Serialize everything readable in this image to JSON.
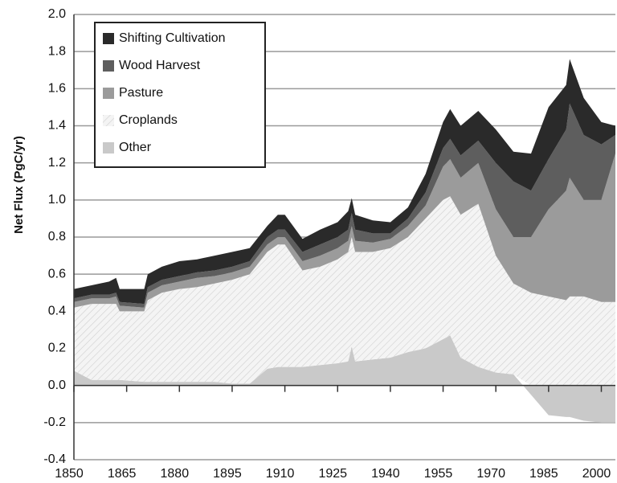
{
  "chart_data": {
    "type": "stacked-area",
    "y_label": "Net Flux  (PgC/yr)",
    "x": [
      1850,
      1855,
      1860,
      1862,
      1863,
      1870,
      1871,
      1875,
      1880,
      1885,
      1890,
      1895,
      1900,
      1905,
      1908,
      1910,
      1915,
      1920,
      1925,
      1928,
      1929,
      1930,
      1935,
      1940,
      1945,
      1950,
      1955,
      1957,
      1960,
      1965,
      1970,
      1975,
      1980,
      1985,
      1990,
      1991,
      1995,
      2000,
      2004
    ],
    "series": [
      {
        "name": "Other",
        "color": "#c9c9c9",
        "values": [
          0.08,
          0.03,
          0.03,
          0.03,
          0.03,
          0.02,
          0.02,
          0.02,
          0.02,
          0.02,
          0.02,
          0.01,
          0.01,
          0.09,
          0.1,
          0.1,
          0.1,
          0.11,
          0.12,
          0.13,
          0.21,
          0.13,
          0.14,
          0.15,
          0.18,
          0.2,
          0.25,
          0.27,
          0.15,
          0.1,
          0.07,
          0.06,
          -0.05,
          -0.16,
          -0.17,
          -0.17,
          -0.19,
          -0.2,
          -0.2
        ]
      },
      {
        "name": "Croplands",
        "color": "#f4f4f4",
        "values": [
          0.34,
          0.41,
          0.41,
          0.41,
          0.37,
          0.38,
          0.44,
          0.48,
          0.5,
          0.51,
          0.53,
          0.56,
          0.59,
          0.63,
          0.66,
          0.66,
          0.52,
          0.53,
          0.56,
          0.59,
          0.59,
          0.59,
          0.58,
          0.59,
          0.62,
          0.7,
          0.75,
          0.75,
          0.77,
          0.88,
          0.63,
          0.49,
          0.5,
          0.48,
          0.46,
          0.48,
          0.48,
          0.45,
          0.45
        ]
      },
      {
        "name": "Pasture",
        "color": "#9b9b9b",
        "values": [
          0.03,
          0.03,
          0.03,
          0.04,
          0.03,
          0.02,
          0.04,
          0.04,
          0.04,
          0.05,
          0.04,
          0.04,
          0.04,
          0.04,
          0.04,
          0.04,
          0.05,
          0.06,
          0.06,
          0.06,
          0.06,
          0.06,
          0.05,
          0.05,
          0.06,
          0.07,
          0.18,
          0.2,
          0.2,
          0.22,
          0.25,
          0.25,
          0.3,
          0.47,
          0.59,
          0.64,
          0.52,
          0.55,
          0.8
        ]
      },
      {
        "name": "Wood Harvest",
        "color": "#5e5e5e",
        "values": [
          0.02,
          0.02,
          0.02,
          0.02,
          0.02,
          0.02,
          0.03,
          0.03,
          0.03,
          0.03,
          0.03,
          0.03,
          0.03,
          0.04,
          0.04,
          0.04,
          0.05,
          0.06,
          0.06,
          0.06,
          0.07,
          0.06,
          0.05,
          0.03,
          0.04,
          0.07,
          0.1,
          0.11,
          0.12,
          0.12,
          0.25,
          0.3,
          0.25,
          0.27,
          0.33,
          0.4,
          0.35,
          0.3,
          0.1
        ]
      },
      {
        "name": "Shifting Cultivation",
        "color": "#2a2a2a",
        "values": [
          0.05,
          0.05,
          0.07,
          0.08,
          0.07,
          0.08,
          0.07,
          0.07,
          0.08,
          0.07,
          0.08,
          0.08,
          0.07,
          0.06,
          0.08,
          0.08,
          0.07,
          0.08,
          0.08,
          0.1,
          0.08,
          0.08,
          0.07,
          0.06,
          0.06,
          0.1,
          0.14,
          0.16,
          0.16,
          0.16,
          0.18,
          0.16,
          0.2,
          0.28,
          0.24,
          0.24,
          0.2,
          0.12,
          0.05
        ]
      }
    ],
    "xlim": [
      1850,
      2004
    ],
    "xticks": [
      1850,
      1865,
      1880,
      1895,
      1910,
      1925,
      1940,
      1955,
      1970,
      1985,
      2000
    ],
    "ylim": [
      -0.4,
      2.0
    ],
    "yticks": [
      {
        "value": -0.4,
        "label": "-0.4"
      },
      {
        "value": -0.2,
        "label": "-0.2"
      },
      {
        "value": 0,
        "label": "0.0"
      },
      {
        "value": 0.2,
        "label": "0.2"
      },
      {
        "value": 0.4,
        "label": "0.4"
      },
      {
        "value": 0.6,
        "label": "0.6"
      },
      {
        "value": 0.8,
        "label": "0.8"
      },
      {
        "value": 1,
        "label": "1.0"
      },
      {
        "value": 1.2,
        "label": "1.2"
      },
      {
        "value": 1.4,
        "label": "1.4"
      },
      {
        "value": 1.6,
        "label": "1.6"
      },
      {
        "value": 1.8,
        "label": "1.8"
      },
      {
        "value": 2,
        "label": "2.0"
      }
    ],
    "grid": true,
    "legend": "upper-left"
  }
}
